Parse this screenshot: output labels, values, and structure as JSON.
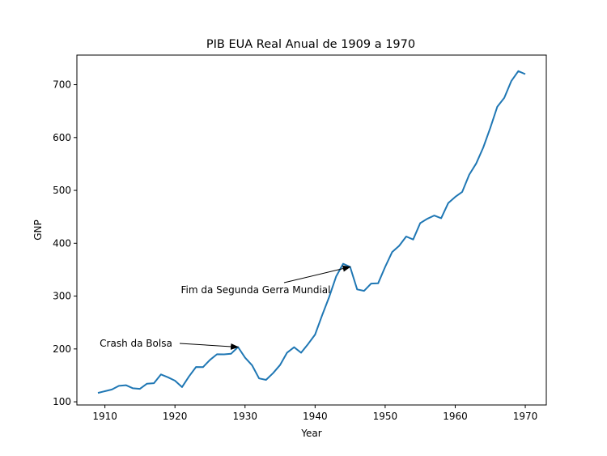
{
  "chart_data": {
    "type": "line",
    "title": "PIB EUA Real Anual de 1909 a 1970",
    "xlabel": "Year",
    "ylabel": "GNP",
    "xlim": [
      1906,
      1973
    ],
    "ylim": [
      94,
      756
    ],
    "xticks": [
      1910,
      1920,
      1930,
      1940,
      1950,
      1960,
      1970
    ],
    "yticks": [
      100,
      200,
      300,
      400,
      500,
      600,
      700
    ],
    "grid": false,
    "legend": "none",
    "line_color": "#1f77b4",
    "series": [
      {
        "x": [
          1909,
          1910,
          1911,
          1912,
          1913,
          1914,
          1915,
          1916,
          1917,
          1918,
          1919,
          1920,
          1921,
          1922,
          1923,
          1924,
          1925,
          1926,
          1927,
          1928,
          1929,
          1930,
          1931,
          1932,
          1933,
          1934,
          1935,
          1936,
          1937,
          1938,
          1939,
          1940,
          1941,
          1942,
          1943,
          1944,
          1945,
          1946,
          1947,
          1948,
          1949,
          1950,
          1951,
          1952,
          1953,
          1954,
          1955,
          1956,
          1957,
          1958,
          1959,
          1960,
          1961,
          1962,
          1963,
          1964,
          1965,
          1966,
          1967,
          1968,
          1969,
          1970
        ],
        "y": [
          116.8,
          120.1,
          123.2,
          130.2,
          131.4,
          125.6,
          124.5,
          134.3,
          135.2,
          151.8,
          146.4,
          140.0,
          127.8,
          148.0,
          165.9,
          165.5,
          179.4,
          190.0,
          189.8,
          190.9,
          203.6,
          183.5,
          169.3,
          144.2,
          141.5,
          154.3,
          169.5,
          193.0,
          203.2,
          192.9,
          209.4,
          227.2,
          263.7,
          297.8,
          337.1,
          361.3,
          355.2,
          312.6,
          309.9,
          323.7,
          324.1,
          355.3,
          383.4,
          395.1,
          412.8,
          407.0,
          438.0,
          446.1,
          452.5,
          447.3,
          475.9,
          487.7,
          497.2,
          529.8,
          551.0,
          581.1,
          617.8,
          658.1,
          675.2,
          706.6,
          725.6,
          720.0
        ]
      }
    ],
    "annotations": [
      {
        "text": "Crash da Bolsa",
        "x": 1929,
        "y": 203.6
      },
      {
        "text": "Fim da Segunda Gerra Mundial",
        "x": 1945,
        "y": 355.2
      }
    ]
  }
}
